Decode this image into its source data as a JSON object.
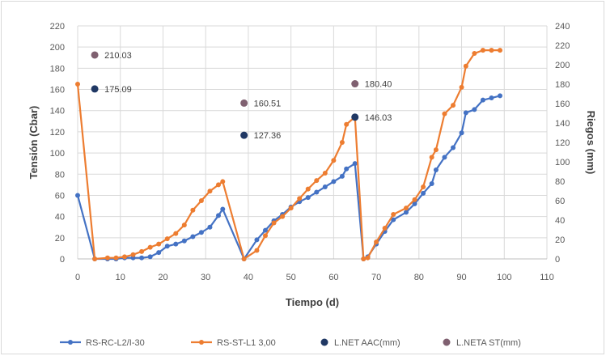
{
  "chart_data": {
    "type": "line",
    "xlabel": "Tiempo (d)",
    "ylabel_left": "Tensión (Cbar)",
    "ylabel_right": "Riegos (mm)",
    "xlim": [
      0,
      110
    ],
    "ylim_left": [
      0,
      220
    ],
    "ylim_right": [
      0,
      240
    ],
    "x_ticks": [
      0,
      10,
      20,
      30,
      40,
      50,
      60,
      70,
      80,
      90,
      100,
      110
    ],
    "y_left_ticks": [
      0,
      20,
      40,
      60,
      80,
      100,
      120,
      140,
      160,
      180,
      200,
      220
    ],
    "y_right_ticks": [
      0,
      20,
      40,
      60,
      80,
      100,
      120,
      140,
      160,
      180,
      200,
      220,
      240
    ],
    "grid": true,
    "legend_position": "bottom",
    "series": [
      {
        "name": "RS-RC-L2/I-30",
        "color": "#4472c4",
        "axis": "left",
        "kind": "line",
        "x": [
          0,
          4,
          7,
          9,
          11,
          13,
          15,
          17,
          19,
          21,
          23,
          25,
          27,
          29,
          31,
          33,
          34,
          39,
          42,
          44,
          46,
          48,
          50,
          52,
          54,
          56,
          58,
          60,
          62,
          63,
          65,
          67,
          68,
          70,
          72,
          74,
          77,
          79,
          81,
          83,
          84,
          86,
          88,
          90,
          91,
          93,
          95,
          97,
          99
        ],
        "y": [
          60,
          0,
          0,
          0,
          1,
          1,
          1,
          2,
          6,
          12,
          14,
          17,
          21,
          25,
          30,
          41,
          47,
          0,
          18,
          27,
          36,
          42,
          49,
          54,
          58,
          63,
          68,
          73,
          78,
          85,
          90,
          0,
          2,
          14,
          26,
          37,
          44,
          52,
          62,
          71,
          84,
          96,
          105,
          119,
          138,
          141,
          150,
          152,
          154
        ]
      },
      {
        "name": "RS-ST-L1 3,00",
        "color": "#ed7d31",
        "axis": "left",
        "kind": "line",
        "x": [
          0,
          4,
          7,
          9,
          11,
          13,
          15,
          17,
          19,
          21,
          23,
          25,
          27,
          29,
          31,
          33,
          34,
          39,
          42,
          44,
          46,
          48,
          50,
          52,
          54,
          56,
          58,
          60,
          62,
          63,
          65,
          67,
          68,
          70,
          72,
          74,
          77,
          79,
          81,
          83,
          84,
          86,
          88,
          90,
          91,
          93,
          95,
          97,
          99
        ],
        "y": [
          165,
          0,
          1,
          1,
          2,
          4,
          7,
          11,
          14,
          19,
          24,
          32,
          46,
          55,
          64,
          70,
          73,
          0,
          8,
          22,
          34,
          40,
          48,
          57,
          66,
          74,
          81,
          93,
          110,
          127,
          134,
          0,
          1,
          16,
          29,
          42,
          48,
          56,
          68,
          96,
          103,
          137,
          145,
          162,
          182,
          194,
          197,
          197,
          197
        ]
      },
      {
        "name": "L.NET AAC(mm)",
        "color": "#203864",
        "axis": "right",
        "kind": "points",
        "x": [
          4,
          39,
          65
        ],
        "y": [
          175.09,
          127.36,
          146.03
        ],
        "labels": [
          "175.09",
          "127.36",
          "146.03"
        ]
      },
      {
        "name": "L.NETA ST(mm)",
        "color": "#7f6070",
        "axis": "right",
        "kind": "points",
        "x": [
          4,
          39,
          65
        ],
        "y": [
          210.03,
          160.51,
          180.4
        ],
        "labels": [
          "210.03",
          "160.51",
          "180.40"
        ]
      }
    ]
  }
}
